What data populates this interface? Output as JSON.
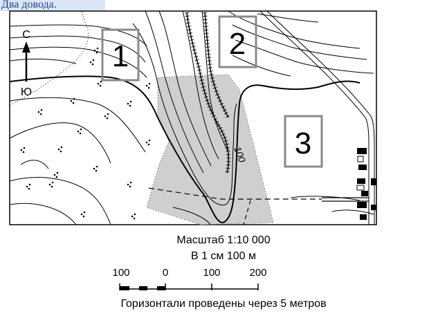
{
  "header_caption": "Два довода.",
  "compass": {
    "north": "С",
    "south": "Ю"
  },
  "zones": [
    {
      "id": "zone-1",
      "label": "1"
    },
    {
      "id": "zone-2",
      "label": "2"
    },
    {
      "id": "zone-3",
      "label": "3"
    }
  ],
  "contour_label": "100",
  "scale": {
    "title": "Масштаб 1:10 000",
    "per_cm": "В 1 см 100 м",
    "ticks": [
      "100",
      "0",
      "100",
      "200"
    ]
  },
  "contour_interval": "Горизонтали проведены через 5 метров",
  "colors": {
    "shade": "#cfcfcf",
    "zone_border": "#8a8a8a",
    "line": "#000000",
    "caption_bg": "#dbe6f4",
    "caption_text": "#1f3f8c"
  }
}
